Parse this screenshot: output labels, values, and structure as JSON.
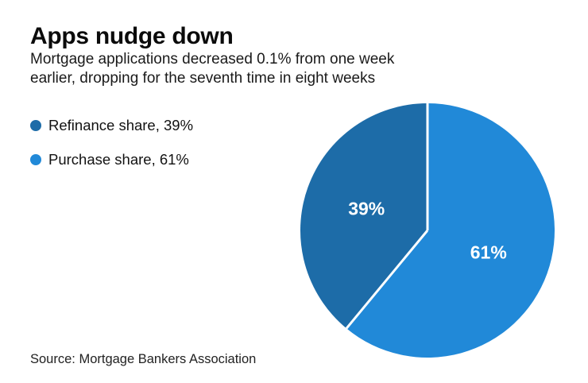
{
  "header": {
    "title": "Apps nudge down",
    "subtitle_line1": "Mortgage applications decreased 0.1% from one week",
    "subtitle_line2": "earlier, dropping for the seventh time in eight weeks"
  },
  "legend": [
    {
      "label": "Refinance share, 39%",
      "color": "#1d6ca8"
    },
    {
      "label": "Purchase share, 61%",
      "color": "#2189d8"
    }
  ],
  "chart_data": {
    "type": "pie",
    "title": "Apps nudge down",
    "subtitle": "Mortgage applications decreased 0.1% from one week earlier, dropping for the seventh time in eight weeks",
    "legend_position": "left",
    "start_angle_deg": 0,
    "direction": "counterclockwise",
    "divider_color": "#ffffff",
    "divider_width": 3,
    "label_color": "#ffffff",
    "label_radius_ratio": 0.51,
    "slices": [
      {
        "label": "Refinance share",
        "value": 39,
        "display": "39%",
        "color": "#1d6ca8"
      },
      {
        "label": "Purchase share",
        "value": 61,
        "display": "61%",
        "color": "#2189d8"
      }
    ]
  },
  "footer": {
    "source": "Source: Mortgage Bankers Association"
  }
}
